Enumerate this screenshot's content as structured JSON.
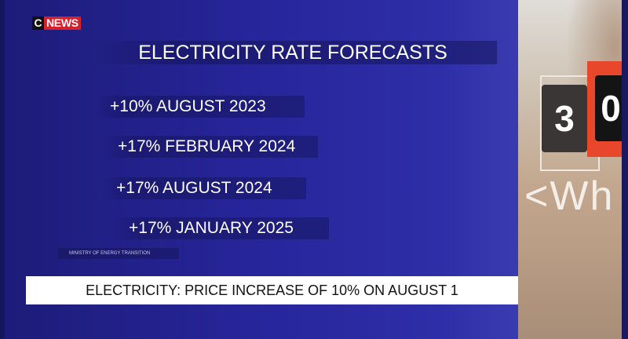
{
  "channel": {
    "logo_c": "C",
    "logo_text": "NEWS",
    "brand_color": "#d6202c"
  },
  "graphic": {
    "title": "ELECTRICITY RATE FORECASTS",
    "forecasts": [
      "+10% AUGUST 2023",
      "+17% FEBRUARY 2024",
      "+17% AUGUST 2024",
      "+17% JANUARY 2025"
    ],
    "source": "MINISTRY OF ENERGY TRANSITION"
  },
  "banner": {
    "headline": "ELECTRICITY: PRICE INCREASE OF 10% ON AUGUST 1"
  },
  "photo": {
    "digits": [
      "3",
      "0"
    ],
    "unit_text": "<Wh"
  }
}
